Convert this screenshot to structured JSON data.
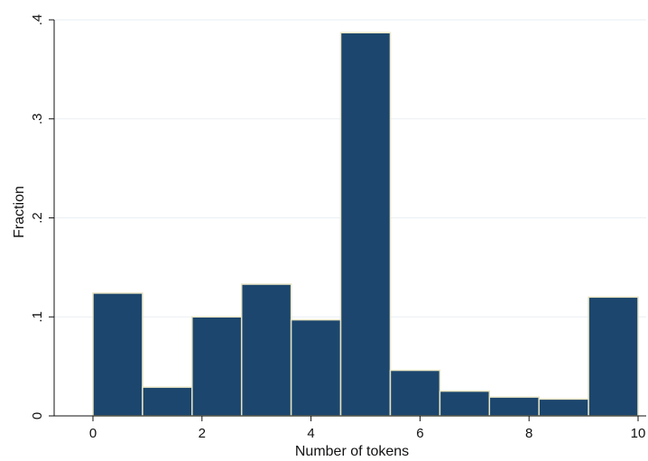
{
  "chart_data": {
    "type": "bar",
    "title": "",
    "xlabel": "Number of tokens",
    "ylabel": "Fraction",
    "xlim": [
      0,
      10
    ],
    "ylim": [
      0,
      0.4
    ],
    "xticks": [
      0,
      2,
      4,
      6,
      8,
      10
    ],
    "xtick_labels": [
      "0",
      "2",
      "4",
      "6",
      "8",
      "10"
    ],
    "yticks": [
      0,
      0.1,
      0.2,
      0.3,
      0.4
    ],
    "ytick_labels": [
      "0",
      ".1",
      ".2",
      ".3",
      ".4"
    ],
    "bin_width": 0.909,
    "bins": [
      {
        "x_start": 0.0,
        "x_end": 0.909,
        "value": 0.124
      },
      {
        "x_start": 0.909,
        "x_end": 1.818,
        "value": 0.029
      },
      {
        "x_start": 1.818,
        "x_end": 2.727,
        "value": 0.1
      },
      {
        "x_start": 2.727,
        "x_end": 3.636,
        "value": 0.133
      },
      {
        "x_start": 3.636,
        "x_end": 4.545,
        "value": 0.097
      },
      {
        "x_start": 4.545,
        "x_end": 5.455,
        "value": 0.387
      },
      {
        "x_start": 5.455,
        "x_end": 6.364,
        "value": 0.046
      },
      {
        "x_start": 6.364,
        "x_end": 7.273,
        "value": 0.025
      },
      {
        "x_start": 7.273,
        "x_end": 8.182,
        "value": 0.019
      },
      {
        "x_start": 8.182,
        "x_end": 9.091,
        "value": 0.017
      },
      {
        "x_start": 9.091,
        "x_end": 10.0,
        "value": 0.12
      }
    ],
    "grid": true,
    "legend": "none",
    "colors": {
      "bar_fill": "#1c466d",
      "bar_edge": "#e8e4c4",
      "gridline": "#eaeff3",
      "axis": "#111111"
    }
  }
}
